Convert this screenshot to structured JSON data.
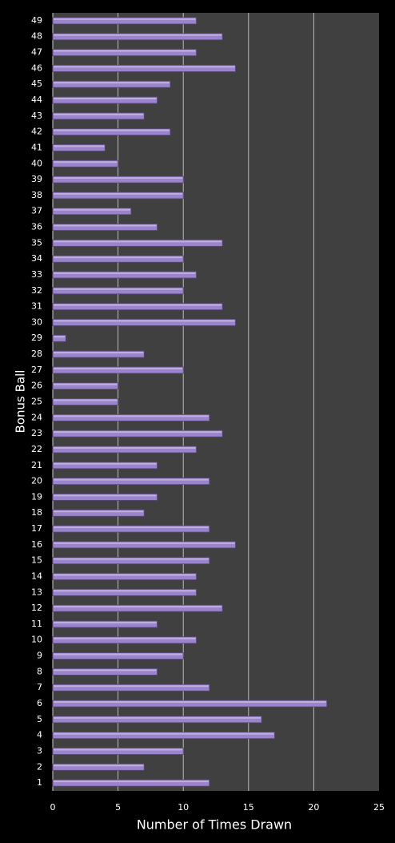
{
  "chart_data": {
    "type": "bar",
    "orientation": "horizontal",
    "x_label": "Number of Times Drawn",
    "y_label": "Bonus Ball",
    "categories": [
      "1",
      "2",
      "3",
      "4",
      "5",
      "6",
      "7",
      "8",
      "9",
      "10",
      "11",
      "12",
      "13",
      "14",
      "15",
      "16",
      "17",
      "18",
      "19",
      "20",
      "21",
      "22",
      "23",
      "24",
      "25",
      "26",
      "27",
      "28",
      "29",
      "30",
      "31",
      "32",
      "33",
      "34",
      "35",
      "36",
      "37",
      "38",
      "39",
      "40",
      "41",
      "42",
      "43",
      "44",
      "45",
      "46",
      "47",
      "48",
      "49"
    ],
    "values": [
      12,
      7,
      10,
      17,
      16,
      21,
      12,
      8,
      10,
      11,
      8,
      13,
      11,
      11,
      12,
      14,
      12,
      7,
      8,
      12,
      8,
      11,
      13,
      12,
      5,
      5,
      10,
      7,
      1,
      14,
      13,
      10,
      11,
      10,
      13,
      8,
      6,
      10,
      10,
      5,
      4,
      9,
      7,
      8,
      9,
      14,
      11,
      13,
      11
    ],
    "color": "#9c84cc",
    "xlim": [
      0,
      25
    ],
    "xticks": [
      0,
      5,
      10,
      15,
      20,
      25
    ],
    "grid": true
  }
}
